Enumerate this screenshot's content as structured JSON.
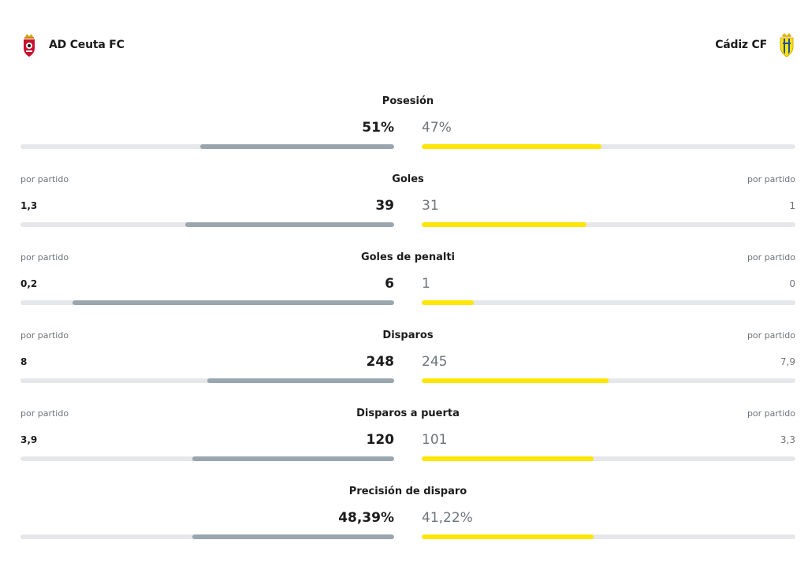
{
  "teams": {
    "home": {
      "name": "AD Ceuta FC",
      "crest": "ad-ceuta-crest"
    },
    "away": {
      "name": "Cádiz CF",
      "crest": "cadiz-crest"
    }
  },
  "colors": {
    "home_bar": "#9aa6ae",
    "away_bar": "#ffe500",
    "track": "#e6e7ea"
  },
  "stats": [
    {
      "key": "posesion",
      "title": "Posesión",
      "home": "51%",
      "away": "47%",
      "home_fill": 0.52,
      "away_fill": 0.48
    },
    {
      "key": "goles",
      "title": "Goles",
      "home": "39",
      "away": "31",
      "per_label_left": "por partido",
      "per_label_right": "por partido",
      "home_per": "1,3",
      "away_per": "1",
      "home_fill": 0.56,
      "away_fill": 0.44
    },
    {
      "key": "goles-penalti",
      "title": "Goles de penalti",
      "home": "6",
      "away": "1",
      "per_label_left": "por partido",
      "per_label_right": "por partido",
      "home_per": "0,2",
      "away_per": "0",
      "home_fill": 0.86,
      "away_fill": 0.14
    },
    {
      "key": "disparos",
      "title": "Disparos",
      "home": "248",
      "away": "245",
      "per_label_left": "por partido",
      "per_label_right": "por partido",
      "home_per": "8",
      "away_per": "7,9",
      "home_fill": 0.5,
      "away_fill": 0.5
    },
    {
      "key": "disparos-puerta",
      "title": "Disparos a puerta",
      "home": "120",
      "away": "101",
      "per_label_left": "por partido",
      "per_label_right": "por partido",
      "home_per": "3,9",
      "away_per": "3,3",
      "home_fill": 0.54,
      "away_fill": 0.46
    },
    {
      "key": "precision",
      "title": "Precisión de disparo",
      "home": "48,39%",
      "away": "41,22%",
      "home_fill": 0.54,
      "away_fill": 0.46
    }
  ]
}
